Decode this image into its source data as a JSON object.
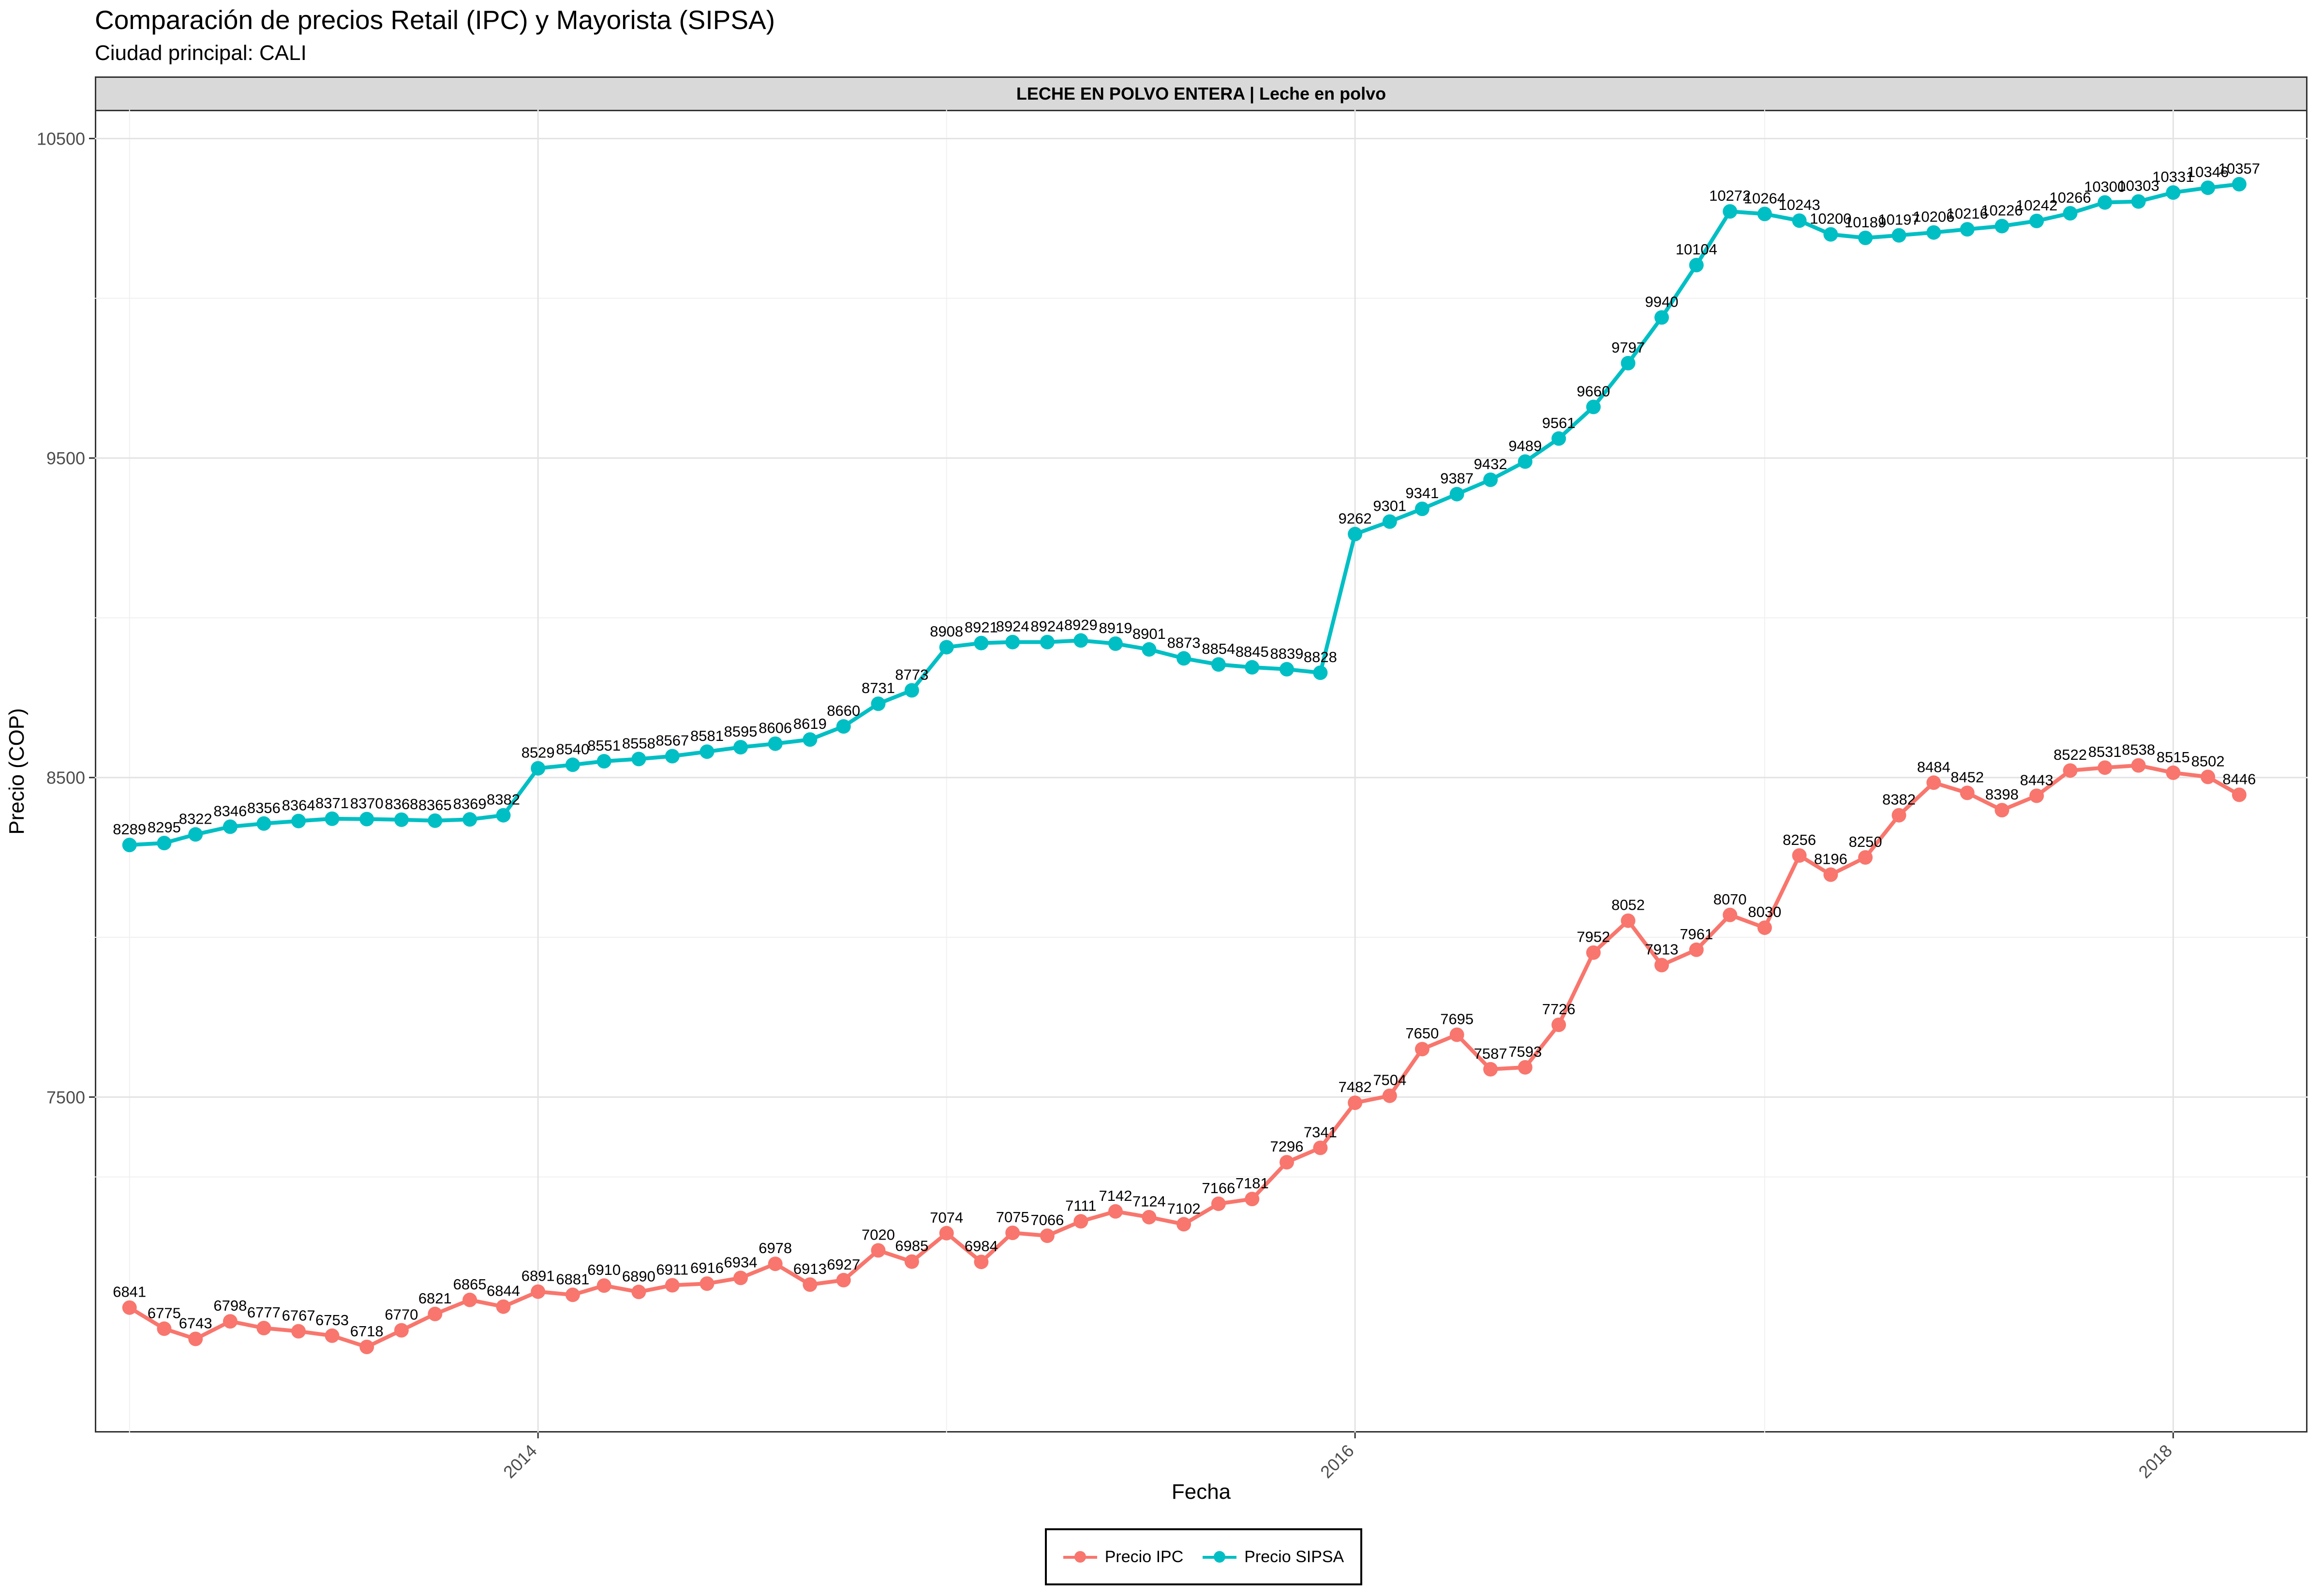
{
  "title": "Comparación de precios Retail (IPC) y Mayorista (SIPSA)",
  "subtitle": "Ciudad principal: CALI",
  "facet_label": "LECHE EN POLVO ENTERA | Leche en polvo",
  "chart_data": {
    "type": "line",
    "xlabel": "Fecha",
    "ylabel": "Precio (COP)",
    "ylim": [
      6450,
      10590
    ],
    "y_ticks": [
      7500,
      8500,
      9500,
      10500
    ],
    "x_ticks": [
      "2014",
      "2016",
      "2018"
    ],
    "grid": true,
    "legend_position": "bottom",
    "series": [
      {
        "name": "Precio IPC",
        "color": "#F8766D",
        "x": [
          "2013-01-01",
          "2013-02-01",
          "2013-03-01",
          "2013-04-01",
          "2013-05-01",
          "2013-06-01",
          "2013-07-01",
          "2013-08-01",
          "2013-09-01",
          "2013-10-01",
          "2013-11-01",
          "2013-12-01",
          "2014-01-01",
          "2014-02-01",
          "2014-03-01",
          "2014-04-01",
          "2014-05-01",
          "2014-06-01",
          "2014-07-01",
          "2014-08-01",
          "2014-09-01",
          "2014-10-01",
          "2014-11-01",
          "2014-12-01",
          "2015-01-01",
          "2015-02-01",
          "2015-03-01",
          "2015-04-01",
          "2015-05-01",
          "2015-06-01",
          "2015-07-01",
          "2015-08-01",
          "2015-09-01",
          "2015-10-01",
          "2015-11-01",
          "2015-12-01",
          "2016-01-01",
          "2016-02-01",
          "2016-03-01",
          "2016-04-01",
          "2016-05-01",
          "2016-06-01",
          "2016-07-01",
          "2016-08-01",
          "2016-09-01",
          "2016-10-01",
          "2016-11-01",
          "2016-12-01",
          "2017-01-01",
          "2017-02-01",
          "2017-03-01",
          "2017-04-01",
          "2017-05-01",
          "2017-06-01",
          "2017-07-01",
          "2017-08-01",
          "2017-09-01",
          "2017-10-01",
          "2017-11-01",
          "2017-12-01",
          "2018-01-01",
          "2018-02-01",
          "2018-03-01"
        ],
        "values": [
          6841,
          6775,
          6743,
          6798,
          6777,
          6767,
          6753,
          6718,
          6770,
          6821,
          6865,
          6844,
          6891,
          6881,
          6910,
          6890,
          6911,
          6916,
          6934,
          6978,
          6913,
          6927,
          7020,
          6985,
          7074,
          6984,
          7075,
          7066,
          7111,
          7142,
          7124,
          7102,
          7166,
          7181,
          7296,
          7341,
          7482,
          7504,
          7650,
          7695,
          7587,
          7593,
          7726,
          7952,
          8052,
          7913,
          7961,
          8070,
          8030,
          8256,
          8196,
          8250,
          8382,
          8484,
          8452,
          8398,
          8443,
          8522,
          8531,
          8538,
          8515,
          8502,
          8446
        ]
      },
      {
        "name": "Precio SIPSA",
        "color": "#00BFC4",
        "x": [
          "2013-01-01",
          "2013-02-01",
          "2013-03-01",
          "2013-04-01",
          "2013-05-01",
          "2013-06-01",
          "2013-07-01",
          "2013-08-01",
          "2013-09-01",
          "2013-10-01",
          "2013-11-01",
          "2013-12-01",
          "2014-01-01",
          "2014-02-01",
          "2014-03-01",
          "2014-04-01",
          "2014-05-01",
          "2014-06-01",
          "2014-07-01",
          "2014-08-01",
          "2014-09-01",
          "2014-10-01",
          "2014-11-01",
          "2014-12-01",
          "2015-01-01",
          "2015-02-01",
          "2015-03-01",
          "2015-04-01",
          "2015-05-01",
          "2015-06-01",
          "2015-07-01",
          "2015-08-01",
          "2015-09-01",
          "2015-10-01",
          "2015-11-01",
          "2015-12-01",
          "2016-01-01",
          "2016-02-01",
          "2016-03-01",
          "2016-04-01",
          "2016-05-01",
          "2016-06-01",
          "2016-07-01",
          "2016-08-01",
          "2016-09-01",
          "2016-10-01",
          "2016-11-01",
          "2016-12-01",
          "2017-01-01",
          "2017-02-01",
          "2017-03-01",
          "2017-04-01",
          "2017-05-01",
          "2017-06-01",
          "2017-07-01",
          "2017-08-01",
          "2017-09-01",
          "2017-10-01",
          "2017-11-01",
          "2017-12-01",
          "2018-01-01",
          "2018-02-01",
          "2018-03-01"
        ],
        "values": [
          8289,
          8295,
          8322,
          8346,
          8356,
          8364,
          8371,
          8370,
          8368,
          8365,
          8369,
          8382,
          8529,
          8540,
          8551,
          8558,
          8567,
          8581,
          8595,
          8606,
          8619,
          8660,
          8731,
          8773,
          8908,
          8921,
          8924,
          8924,
          8929,
          8919,
          8901,
          8873,
          8854,
          8845,
          8839,
          8828,
          9262,
          9301,
          9341,
          9387,
          9432,
          9489,
          9561,
          9660,
          9797,
          9940,
          10104,
          10272,
          10264,
          10243,
          10200,
          10189,
          10197,
          10206,
          10216,
          10226,
          10242,
          10266,
          10300,
          10303,
          10331,
          10346,
          10357
        ]
      }
    ]
  }
}
